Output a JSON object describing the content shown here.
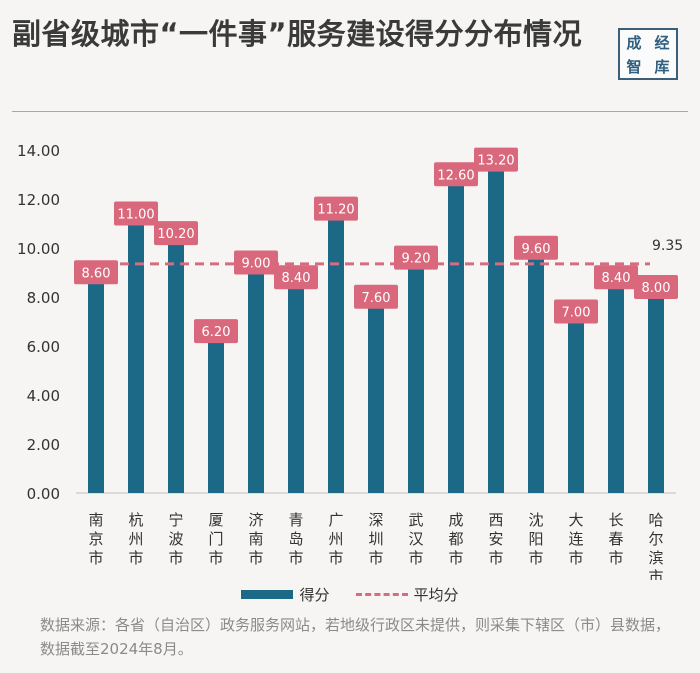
{
  "header": {
    "title": "副省级城市“一件事”服务建设得分分布情况",
    "logo_chars": [
      "成",
      "经",
      "智",
      "库"
    ]
  },
  "legend": {
    "bar_label": "得分",
    "line_label": "平均分"
  },
  "source_note": "数据来源：各省（自治区）政务服务网站，若地级行政区未提供，则采集下辖区（市）县数据，数据截至2024年8月。",
  "colors": {
    "bar": "#1b6986",
    "average_line": "#d56d82",
    "label_bg": "#d9687c",
    "label_text": "#ffffff"
  },
  "chart_data": {
    "type": "bar",
    "categories": [
      "南京市",
      "杭州市",
      "宁波市",
      "厦门市",
      "济南市",
      "青岛市",
      "广州市",
      "深圳市",
      "武汉市",
      "成都市",
      "西安市",
      "沈阳市",
      "大连市",
      "长春市",
      "哈尔滨市"
    ],
    "series": [
      {
        "name": "得分",
        "values": [
          8.6,
          11.0,
          10.2,
          6.2,
          9.0,
          8.4,
          11.2,
          7.6,
          9.2,
          12.6,
          13.2,
          9.6,
          7.0,
          8.4,
          8.0
        ]
      }
    ],
    "value_labels": [
      "8.60",
      "11.00",
      "10.20",
      "6.20",
      "9.00",
      "8.40",
      "11.20",
      "7.60",
      "9.20",
      "12.60",
      "13.20",
      "9.60",
      "7.00",
      "8.40",
      "8.00"
    ],
    "average": {
      "name": "平均分",
      "value": 9.35,
      "label": "9.35"
    },
    "ylim": [
      0,
      14
    ],
    "yticks": [
      0,
      2,
      4,
      6,
      8,
      10,
      12,
      14
    ],
    "ytick_labels": [
      "0.00",
      "2.00",
      "4.00",
      "6.00",
      "8.00",
      "10.00",
      "12.00",
      "14.00"
    ],
    "grid": false,
    "legend_position": "bottom"
  }
}
